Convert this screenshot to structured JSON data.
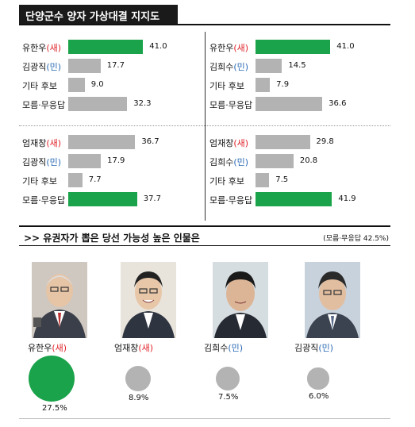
{
  "title": "단양군수 양자 가상대결 지지도",
  "colors": {
    "highlight": "#1aa34a",
    "bar": "#b3b3b3",
    "sae": "#e0232b",
    "min": "#2a6ab5"
  },
  "chart_data": [
    {
      "type": "bar",
      "orientation": "horizontal",
      "categories": [
        [
          "유한우",
          "(새)"
        ],
        [
          "김광직",
          "(민)"
        ],
        [
          "기타 후보",
          ""
        ],
        [
          "모름·무응답",
          ""
        ]
      ],
      "values": [
        41.0,
        17.7,
        9.0,
        32.3
      ],
      "labels": [
        "41.0",
        "17.7",
        "9.0",
        "32.3"
      ],
      "highlight": 0
    },
    {
      "type": "bar",
      "orientation": "horizontal",
      "categories": [
        [
          "유한우",
          "(새)"
        ],
        [
          "김희수",
          "(민)"
        ],
        [
          "기타 후보",
          ""
        ],
        [
          "모름·무응답",
          ""
        ]
      ],
      "values": [
        41.0,
        14.5,
        7.9,
        36.6
      ],
      "labels": [
        "41.0",
        "14.5",
        "7.9",
        "36.6"
      ],
      "highlight": 0
    },
    {
      "type": "bar",
      "orientation": "horizontal",
      "categories": [
        [
          "엄재창",
          "(새)"
        ],
        [
          "김광직",
          "(민)"
        ],
        [
          "기타 후보",
          ""
        ],
        [
          "모름·무응답",
          ""
        ]
      ],
      "values": [
        36.7,
        17.9,
        7.7,
        37.7
      ],
      "labels": [
        "36.7",
        "17.9",
        "7.7",
        "37.7"
      ],
      "highlight": 3
    },
    {
      "type": "bar",
      "orientation": "horizontal",
      "categories": [
        [
          "엄재창",
          "(새)"
        ],
        [
          "김희수",
          "(민)"
        ],
        [
          "기타 후보",
          ""
        ],
        [
          "모름·무응답",
          ""
        ]
      ],
      "values": [
        29.8,
        20.8,
        7.5,
        41.9
      ],
      "labels": [
        "29.8",
        "20.8",
        "7.5",
        "41.9"
      ],
      "highlight": 3
    }
  ],
  "likelihood": {
    "heading": ">> 유권자가 뽑은 당선 가능성 높은 인물은",
    "note": "(모름·무응답 42.5%)",
    "chart_data": {
      "type": "bubble",
      "candidates": [
        {
          "name": "유한우",
          "party": "(새)",
          "value": 27.5,
          "label": "27.5%",
          "highlight": true
        },
        {
          "name": "엄재창",
          "party": "(새)",
          "value": 8.9,
          "label": "8.9%",
          "highlight": false
        },
        {
          "name": "김희수",
          "party": "(민)",
          "value": 7.5,
          "label": "7.5%",
          "highlight": false
        },
        {
          "name": "김광직",
          "party": "(민)",
          "value": 6.0,
          "label": "6.0%",
          "highlight": false
        }
      ]
    }
  }
}
